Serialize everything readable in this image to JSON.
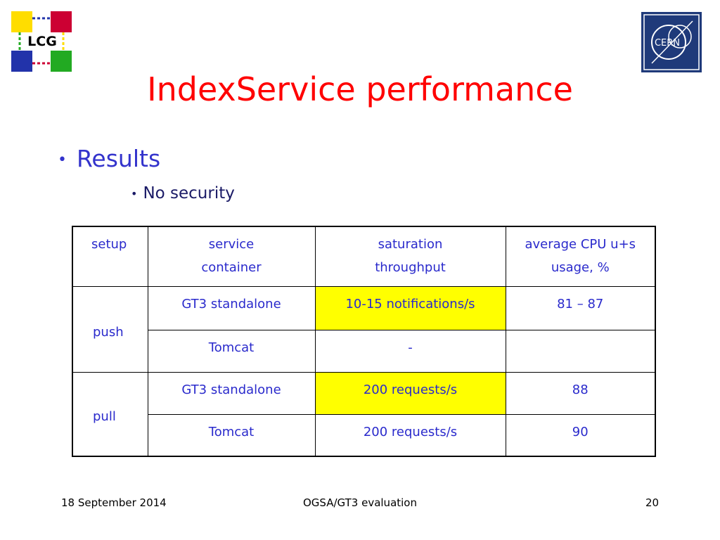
{
  "logos": {
    "lcg": "LCG",
    "cern": "CERN"
  },
  "header": {
    "title": "IndexService performance"
  },
  "bullets": {
    "main": "Results",
    "sub": "No security"
  },
  "table": {
    "columns": [
      "setup",
      "service container",
      "saturation throughput",
      "average CPU u+s usage, %"
    ],
    "groups": [
      {
        "setup": "push",
        "rows": [
          [
            "GT3 standalone",
            "10-15 notifications/s",
            "81 – 87"
          ],
          [
            "Tomcat",
            "-"
          ]
        ]
      },
      {
        "setup": "pull",
        "rows": [
          [
            "GT3 standalone",
            "200 requests/s",
            "88"
          ],
          [
            "Tomcat",
            "200 requests/s",
            "90"
          ]
        ]
      }
    ]
  },
  "footer": {
    "date": "18 September 2014",
    "center": "OGSA/GT3 evaluation",
    "page": "20"
  }
}
